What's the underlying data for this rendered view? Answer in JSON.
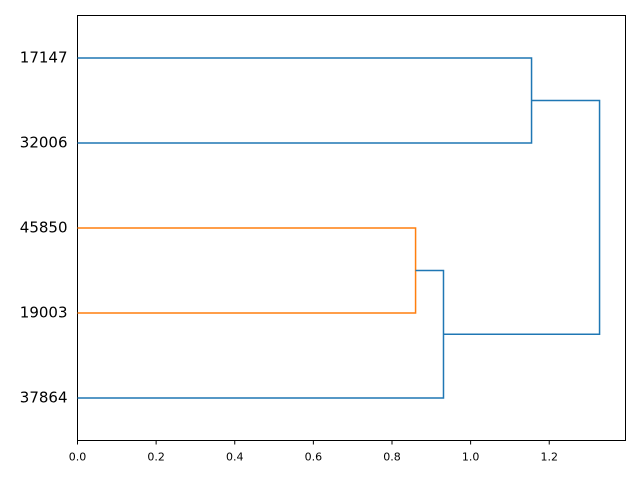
{
  "chart_data": {
    "type": "dendrogram",
    "orientation": "left",
    "xlim": [
      0,
      1.394
    ],
    "xticks": [
      {
        "value": 0,
        "label": "0.0"
      },
      0.2,
      0.4,
      0.6,
      0.8,
      {
        "value": 1,
        "label": "1.0"
      },
      1.2
    ],
    "tree": {
      "height": 1.328,
      "color": "#1f77b4",
      "children": [
        {
          "height": 1.155,
          "color": "#1f77b4",
          "children": [
            "17147",
            "32006"
          ]
        },
        {
          "height": 0.931,
          "color": "#1f77b4",
          "children": [
            {
              "height": 0.86,
              "color": "#ff7f0e",
              "children": [
                "45850",
                "19003"
              ]
            },
            "37864"
          ]
        }
      ]
    }
  }
}
